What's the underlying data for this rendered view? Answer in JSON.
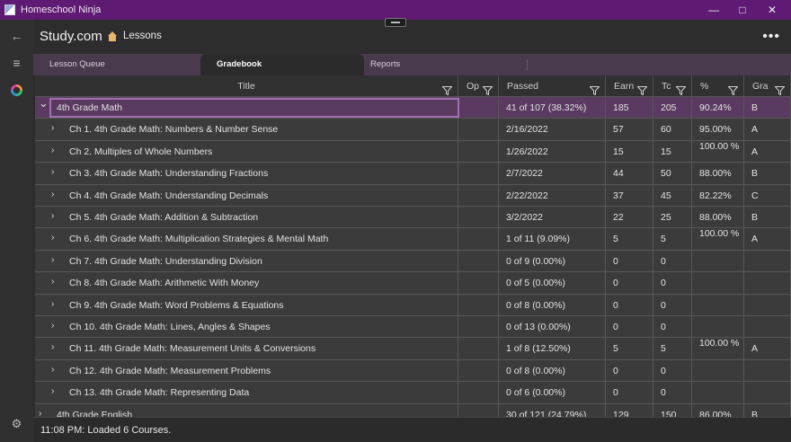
{
  "window": {
    "title": "Homeschool Ninja",
    "controls": [
      "minimize",
      "maximize",
      "close"
    ]
  },
  "rail": {
    "items": [
      {
        "name": "back-icon",
        "glyph": "←"
      },
      {
        "name": "menu-icon",
        "glyph": "≡"
      },
      {
        "name": "app-ring-icon",
        "glyph": ""
      },
      {
        "name": "settings-icon",
        "glyph": "⚙"
      }
    ]
  },
  "header": {
    "brand": "Study.com",
    "breadcrumb": "Lessons",
    "more_glyph": "•••"
  },
  "tabs": [
    {
      "label": "Lesson Queue",
      "active": false
    },
    {
      "label": "Gradebook",
      "active": true
    },
    {
      "label": "Reports",
      "active": false
    }
  ],
  "grid": {
    "columns": [
      "Title",
      "Op",
      "Passed",
      "Earn",
      "Tc",
      "%",
      "Gra"
    ],
    "rows": [
      {
        "group": true,
        "title": "4th Grade Math",
        "passed": "41 of 107 (38.32%)",
        "earn": "185",
        "total": "205",
        "pct": "90.24%",
        "grade": "B"
      },
      {
        "group": false,
        "title": "Ch  1. 4th Grade Math: Numbers & Number Sense",
        "passed": "2/16/2022",
        "earn": "57",
        "total": "60",
        "pct": "95.00%",
        "grade": "A"
      },
      {
        "group": false,
        "title": "Ch  2. Multiples of Whole Numbers",
        "passed": "1/26/2022",
        "earn": "15",
        "total": "15",
        "pct": "100.00 %",
        "grade": "A"
      },
      {
        "group": false,
        "title": "Ch  3. 4th Grade Math: Understanding Fractions",
        "passed": "2/7/2022",
        "earn": "44",
        "total": "50",
        "pct": "88.00%",
        "grade": "B"
      },
      {
        "group": false,
        "title": "Ch  4. 4th Grade Math: Understanding Decimals",
        "passed": "2/22/2022",
        "earn": "37",
        "total": "45",
        "pct": "82.22%",
        "grade": "C"
      },
      {
        "group": false,
        "title": "Ch  5. 4th Grade Math: Addition & Subtraction",
        "passed": "3/2/2022",
        "earn": "22",
        "total": "25",
        "pct": "88.00%",
        "grade": "B"
      },
      {
        "group": false,
        "title": "Ch  6. 4th Grade Math: Multiplication Strategies & Mental Math",
        "passed": "1 of 11 (9.09%)",
        "earn": "5",
        "total": "5",
        "pct": "100.00 %",
        "grade": "A"
      },
      {
        "group": false,
        "title": "Ch  7. 4th Grade Math: Understanding Division",
        "passed": "0 of 9 (0.00%)",
        "earn": "0",
        "total": "0",
        "pct": "",
        "grade": ""
      },
      {
        "group": false,
        "title": "Ch  8. 4th Grade Math: Arithmetic With Money",
        "passed": "0 of 5 (0.00%)",
        "earn": "0",
        "total": "0",
        "pct": "",
        "grade": ""
      },
      {
        "group": false,
        "title": "Ch  9. 4th Grade Math: Word Problems & Equations",
        "passed": "0 of 8 (0.00%)",
        "earn": "0",
        "total": "0",
        "pct": "",
        "grade": ""
      },
      {
        "group": false,
        "title": "Ch 10. 4th Grade Math: Lines, Angles & Shapes",
        "passed": "0 of 13 (0.00%)",
        "earn": "0",
        "total": "0",
        "pct": "",
        "grade": ""
      },
      {
        "group": false,
        "title": "Ch 11. 4th Grade Math: Measurement Units & Conversions",
        "passed": "1 of 8 (12.50%)",
        "earn": "5",
        "total": "5",
        "pct": "100.00 %",
        "grade": "A"
      },
      {
        "group": false,
        "title": "Ch 12. 4th Grade Math: Measurement Problems",
        "passed": "0 of 8 (0.00%)",
        "earn": "0",
        "total": "0",
        "pct": "",
        "grade": ""
      },
      {
        "group": false,
        "title": "Ch 13. 4th Grade Math: Representing Data",
        "passed": "0 of 6 (0.00%)",
        "earn": "0",
        "total": "0",
        "pct": "",
        "grade": ""
      },
      {
        "group": true,
        "title": "4th Grade English",
        "passed": "30 of 121 (24.79%)",
        "earn": "129",
        "total": "150",
        "pct": "86.00%",
        "grade": "B"
      }
    ]
  },
  "status": "11:08 PM: Loaded 6 Courses.",
  "colors": {
    "titlebar": "#5f1a73",
    "tabstrip": "#4a3a4e",
    "group_row": "#5a3a60",
    "selection_border": "#a070b0"
  }
}
